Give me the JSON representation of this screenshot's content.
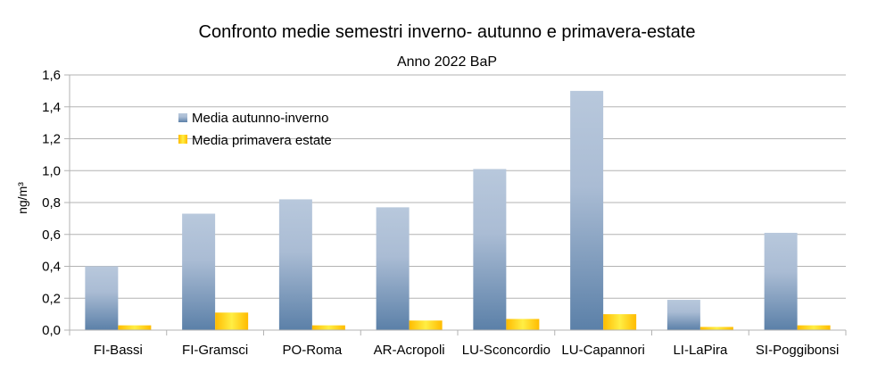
{
  "chart_data": {
    "type": "bar",
    "title": "Confronto medie semestri inverno- autunno  e primavera-estate",
    "subtitle": "Anno 2022 BaP",
    "xlabel": "",
    "ylabel": "ng/m³",
    "ylim": [
      0,
      1.6
    ],
    "yticks": [
      "0,0",
      "0,2",
      "0,4",
      "0,6",
      "0,8",
      "1,0",
      "1,2",
      "1,4",
      "1,6"
    ],
    "grid": true,
    "legend_position": "top-left",
    "categories": [
      "FI-Bassi",
      "FI-Gramsci",
      "PO-Roma",
      "AR-Acropoli",
      "LU-Sconcordio",
      "LU-Capannori",
      "LI-LaPira",
      "SI-Poggibonsi"
    ],
    "series": [
      {
        "name": "Media autunno-inverno",
        "values": [
          0.4,
          0.73,
          0.82,
          0.77,
          1.01,
          1.5,
          0.19,
          0.61
        ],
        "color_top": "#b8c8dc",
        "color_bottom": "#5b80a8"
      },
      {
        "name": "Media primavera estate",
        "values": [
          0.03,
          0.11,
          0.03,
          0.06,
          0.07,
          0.1,
          0.02,
          0.03
        ],
        "color_light": "#ffee44",
        "color_dark": "#ffbb00"
      }
    ]
  }
}
